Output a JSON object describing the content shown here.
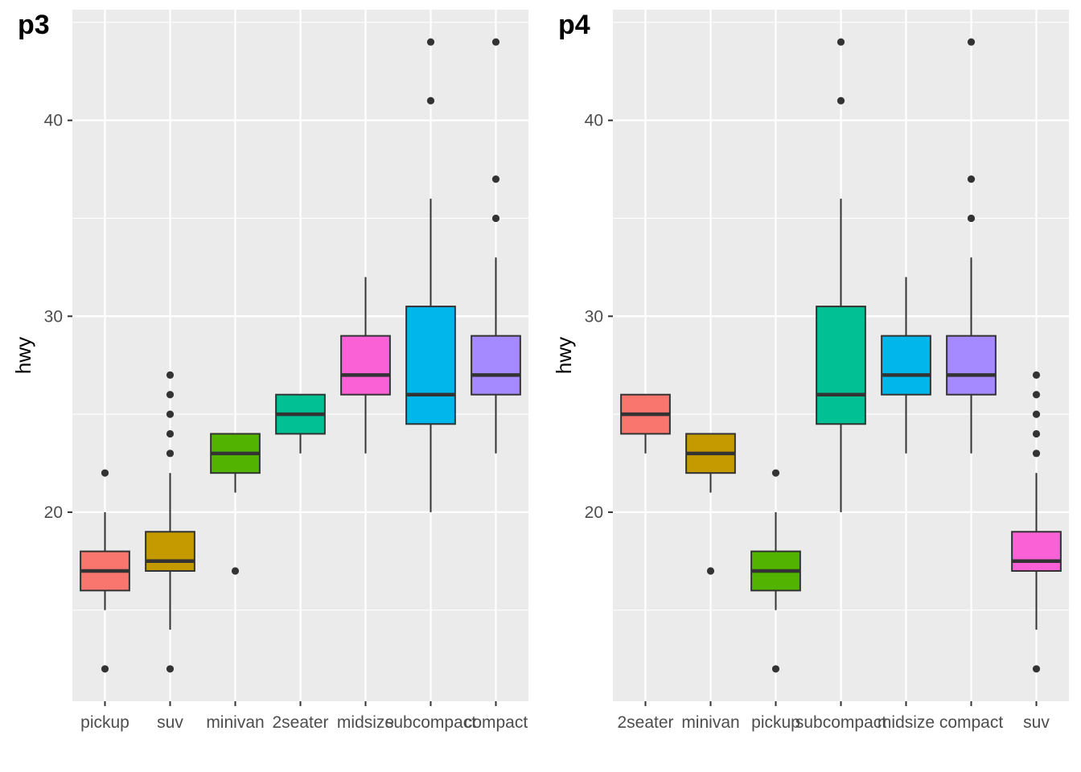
{
  "chart_data": [
    {
      "type": "boxplot",
      "tag": "p3",
      "xlabel": "",
      "ylabel": "hwy",
      "ylim": [
        10.35,
        45.65
      ],
      "y_ticks": [
        20,
        30,
        40
      ],
      "grid": true,
      "categories": [
        "pickup",
        "suv",
        "minivan",
        "2seater",
        "midsize",
        "subcompact",
        "compact"
      ],
      "boxes": [
        {
          "category": "pickup",
          "color": "#F8766D",
          "lower_whisker": 15,
          "q1": 16,
          "median": 17,
          "q3": 18,
          "upper_whisker": 20,
          "outliers": [
            12,
            22
          ]
        },
        {
          "category": "suv",
          "color": "#C49A00",
          "lower_whisker": 14,
          "q1": 17,
          "median": 17.5,
          "q3": 19,
          "upper_whisker": 22,
          "outliers": [
            12,
            23,
            24,
            25,
            26,
            27
          ]
        },
        {
          "category": "minivan",
          "color": "#53B400",
          "lower_whisker": 21,
          "q1": 22,
          "median": 23,
          "q3": 24,
          "upper_whisker": 24,
          "outliers": [
            17
          ]
        },
        {
          "category": "2seater",
          "color": "#00C094",
          "lower_whisker": 23,
          "q1": 24,
          "median": 25,
          "q3": 26,
          "upper_whisker": 26,
          "outliers": []
        },
        {
          "category": "midsize",
          "color": "#FB61D7",
          "lower_whisker": 23,
          "q1": 26,
          "median": 27,
          "q3": 29,
          "upper_whisker": 32,
          "outliers": []
        },
        {
          "category": "subcompact",
          "color": "#00B6EB",
          "lower_whisker": 20,
          "q1": 24.5,
          "median": 26,
          "q3": 30.5,
          "upper_whisker": 36,
          "outliers": [
            41,
            44
          ]
        },
        {
          "category": "compact",
          "color": "#A58AFF",
          "lower_whisker": 23,
          "q1": 26,
          "median": 27,
          "q3": 29,
          "upper_whisker": 33,
          "outliers": [
            35,
            37,
            44
          ]
        }
      ]
    },
    {
      "type": "boxplot",
      "tag": "p4",
      "xlabel": "",
      "ylabel": "hwy",
      "ylim": [
        10.35,
        45.65
      ],
      "y_ticks": [
        20,
        30,
        40
      ],
      "grid": true,
      "categories": [
        "2seater",
        "minivan",
        "pickup",
        "subcompact",
        "midsize",
        "compact",
        "suv"
      ],
      "boxes": [
        {
          "category": "2seater",
          "color": "#F8766D",
          "lower_whisker": 23,
          "q1": 24,
          "median": 25,
          "q3": 26,
          "upper_whisker": 26,
          "outliers": []
        },
        {
          "category": "minivan",
          "color": "#C49A00",
          "lower_whisker": 21,
          "q1": 22,
          "median": 23,
          "q3": 24,
          "upper_whisker": 24,
          "outliers": [
            17
          ]
        },
        {
          "category": "pickup",
          "color": "#53B400",
          "lower_whisker": 15,
          "q1": 16,
          "median": 17,
          "q3": 18,
          "upper_whisker": 20,
          "outliers": [
            12,
            22
          ]
        },
        {
          "category": "subcompact",
          "color": "#00C094",
          "lower_whisker": 20,
          "q1": 24.5,
          "median": 26,
          "q3": 30.5,
          "upper_whisker": 36,
          "outliers": [
            41,
            44
          ]
        },
        {
          "category": "midsize",
          "color": "#00B6EB",
          "lower_whisker": 23,
          "q1": 26,
          "median": 27,
          "q3": 29,
          "upper_whisker": 32,
          "outliers": []
        },
        {
          "category": "compact",
          "color": "#A58AFF",
          "lower_whisker": 23,
          "q1": 26,
          "median": 27,
          "q3": 29,
          "upper_whisker": 33,
          "outliers": [
            35,
            37,
            44
          ]
        },
        {
          "category": "suv",
          "color": "#FB61D7",
          "lower_whisker": 14,
          "q1": 17,
          "median": 17.5,
          "q3": 19,
          "upper_whisker": 22,
          "outliers": [
            12,
            23,
            24,
            25,
            26,
            27
          ]
        }
      ]
    }
  ]
}
